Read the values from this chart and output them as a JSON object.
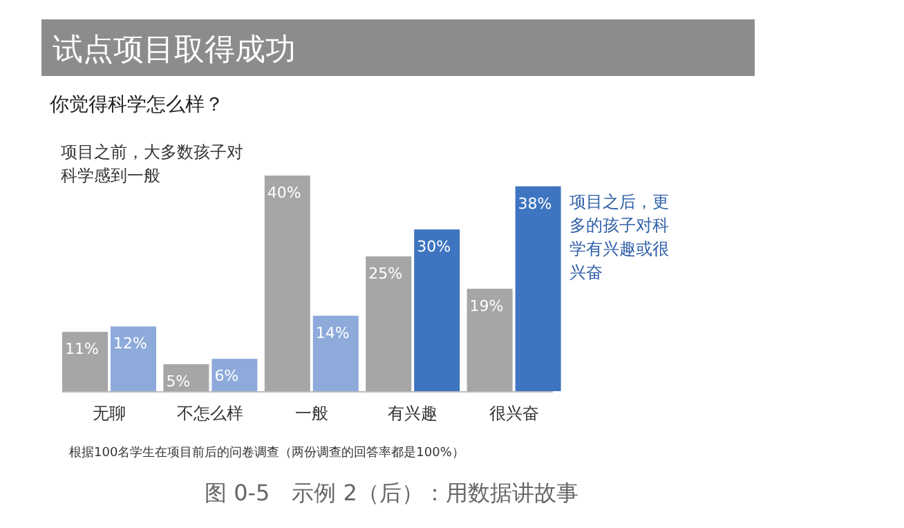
{
  "chart_data": {
    "type": "bar",
    "title": "试点项目取得成功",
    "subtitle": "你觉得科学怎么样？",
    "categories": [
      "无聊",
      "不怎么样",
      "一般",
      "有兴趣",
      "很兴奋"
    ],
    "series": [
      {
        "colors": [
          "#a6a6a6",
          "#a6a6a6",
          "#a6a6a6",
          "#a6a6a6",
          "#a6a6a6"
        ],
        "values": [
          11,
          5,
          40,
          25,
          19
        ],
        "value_labels": [
          "11%",
          "5%",
          "40%",
          "25%",
          "19%"
        ]
      },
      {
        "colors": [
          "#8eaadb",
          "#8eaadb",
          "#8eaadb",
          "#3e75c0",
          "#3e75c0"
        ],
        "values": [
          12,
          6,
          14,
          30,
          38
        ],
        "value_labels": [
          "12%",
          "6%",
          "14%",
          "30%",
          "38%"
        ]
      }
    ],
    "annotations": [
      "项目之前，大多数孩子对科学感到一般",
      "项目之后，更多的孩子对科学有兴趣或很兴奋",
      "根据100名学生在项目前后的问卷调查（两份调查的回答率都是100%）",
      "图 0-5　示例 2（后）：用数据讲故事"
    ]
  }
}
